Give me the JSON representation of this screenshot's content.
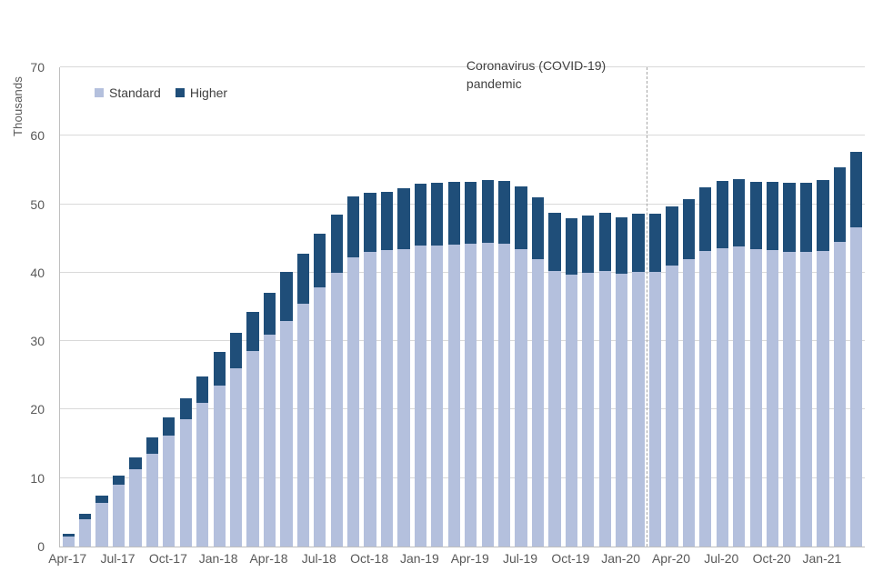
{
  "chart_data": {
    "type": "bar",
    "stacked": true,
    "title": "",
    "ylabel": "Thousands",
    "xlabel": "",
    "ylim": [
      0,
      70
    ],
    "y_ticks": [
      0,
      10,
      20,
      30,
      40,
      50,
      60,
      70
    ],
    "x_tick_interval": 3,
    "grid": "horizontal",
    "legend_position": "top-left",
    "categories": [
      "Apr-17",
      "May-17",
      "Jun-17",
      "Jul-17",
      "Aug-17",
      "Sep-17",
      "Oct-17",
      "Nov-17",
      "Dec-17",
      "Jan-18",
      "Feb-18",
      "Mar-18",
      "Apr-18",
      "May-18",
      "Jun-18",
      "Jul-18",
      "Aug-18",
      "Sep-18",
      "Oct-18",
      "Nov-18",
      "Dec-18",
      "Jan-19",
      "Feb-19",
      "Mar-19",
      "Apr-19",
      "May-19",
      "Jun-19",
      "Jul-19",
      "Aug-19",
      "Sep-19",
      "Oct-19",
      "Nov-19",
      "Dec-19",
      "Jan-20",
      "Feb-20",
      "Mar-20",
      "Apr-20",
      "May-20",
      "Jun-20",
      "Jul-20",
      "Aug-20",
      "Sep-20",
      "Oct-20",
      "Nov-20",
      "Dec-20",
      "Jan-21",
      "Feb-21",
      "Mar-21"
    ],
    "series": [
      {
        "name": "Standard",
        "color": "#b4c0dd",
        "values": [
          1.5,
          4.0,
          6.4,
          9.0,
          11.3,
          13.6,
          16.2,
          18.6,
          21.0,
          23.5,
          26.0,
          28.5,
          30.9,
          33.0,
          35.5,
          37.9,
          40.0,
          42.3,
          43.0,
          43.3,
          43.5,
          44.0,
          44.0,
          44.1,
          44.2,
          44.3,
          44.2,
          43.4,
          42.0,
          40.2,
          39.7,
          40.0,
          40.2,
          39.8,
          40.1,
          40.1,
          41.0,
          42.0,
          43.2,
          43.6,
          43.8,
          43.5,
          43.3,
          43.0,
          43.0,
          43.2,
          44.5,
          46.6
        ]
      },
      {
        "name": "Higher",
        "color": "#1f4e79",
        "values": [
          0.4,
          0.8,
          1.1,
          1.3,
          1.7,
          2.3,
          2.7,
          3.1,
          3.8,
          4.9,
          5.2,
          5.8,
          6.2,
          7.1,
          7.3,
          7.8,
          8.5,
          8.9,
          8.7,
          8.5,
          8.9,
          9.0,
          9.2,
          9.2,
          9.1,
          9.2,
          9.2,
          9.2,
          9.0,
          8.6,
          8.3,
          8.4,
          8.6,
          8.3,
          8.5,
          8.5,
          8.7,
          8.8,
          9.3,
          9.8,
          9.9,
          9.8,
          10.0,
          10.2,
          10.1,
          10.3,
          10.9,
          11.1
        ]
      }
    ],
    "annotation": {
      "line1": "Coronavirus (COVID-19)",
      "line2": "pandemic",
      "x_index": 35
    }
  }
}
